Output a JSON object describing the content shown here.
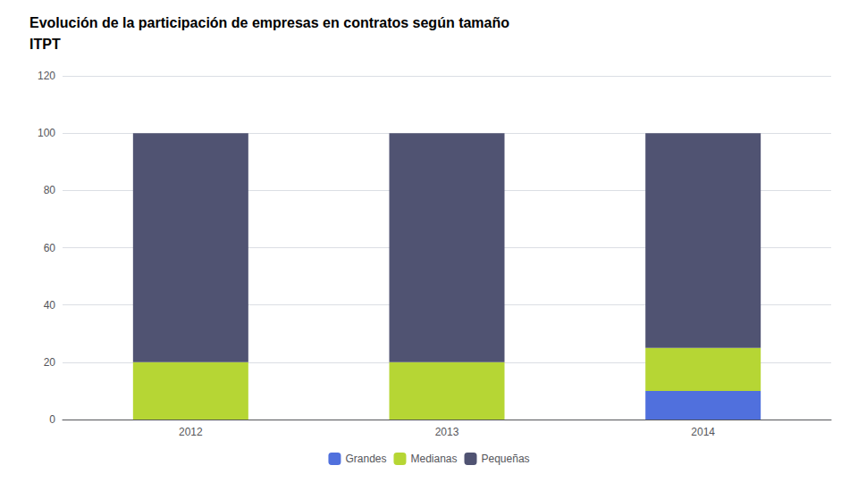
{
  "chart_data": {
    "type": "bar",
    "title": "Evolución de la participación de empresas en contratos según tamaño",
    "subtitle": "ITPT",
    "categories": [
      "2012",
      "2013",
      "2014"
    ],
    "series": [
      {
        "name": "Grandes",
        "values": [
          0,
          0,
          10
        ]
      },
      {
        "name": "Medianas",
        "values": [
          20,
          20,
          15
        ]
      },
      {
        "name": "Pequeñas",
        "values": [
          80,
          80,
          75
        ]
      }
    ],
    "stacked": true,
    "ylim": [
      0,
      120
    ],
    "yticks": [
      0,
      20,
      40,
      60,
      80,
      100,
      120
    ],
    "grid": true,
    "legend": "bottom"
  }
}
